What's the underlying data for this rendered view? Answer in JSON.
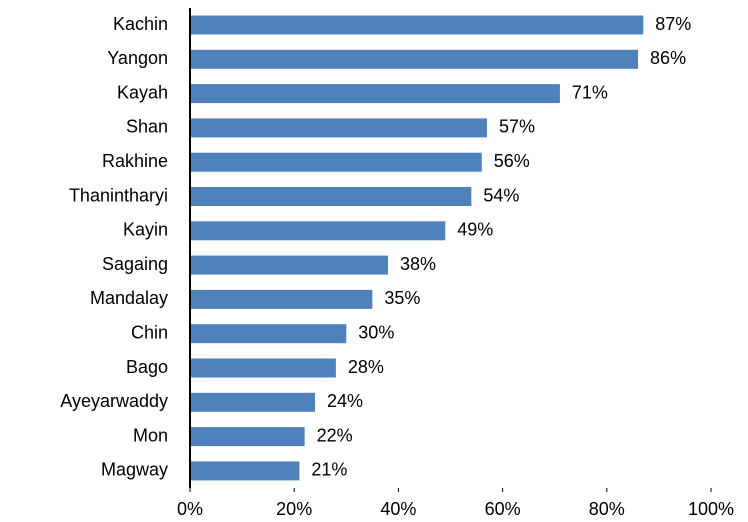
{
  "chart_data": {
    "type": "bar",
    "orientation": "horizontal",
    "categories": [
      "Kachin",
      "Yangon",
      "Kayah",
      "Shan",
      "Rakhine",
      "Thanintharyi",
      "Kayin",
      "Sagaing",
      "Mandalay",
      "Chin",
      "Bago",
      "Ayeyarwaddy",
      "Mon",
      "Magway"
    ],
    "values": [
      87,
      86,
      71,
      57,
      56,
      54,
      49,
      38,
      35,
      30,
      28,
      24,
      22,
      21
    ],
    "value_labels": [
      "87%",
      "86%",
      "71%",
      "57%",
      "56%",
      "54%",
      "49%",
      "38%",
      "35%",
      "30%",
      "28%",
      "24%",
      "22%",
      "21%"
    ],
    "color": "#4f81bd",
    "xlim": [
      0,
      100
    ],
    "xticks": [
      {
        "value": 0,
        "label": "0%"
      },
      {
        "value": 20,
        "label": "20%"
      },
      {
        "value": 40,
        "label": "40%"
      },
      {
        "value": 60,
        "label": "60%"
      },
      {
        "value": 80,
        "label": "80%"
      },
      {
        "value": 100,
        "label": "100%"
      }
    ],
    "grid": false
  }
}
